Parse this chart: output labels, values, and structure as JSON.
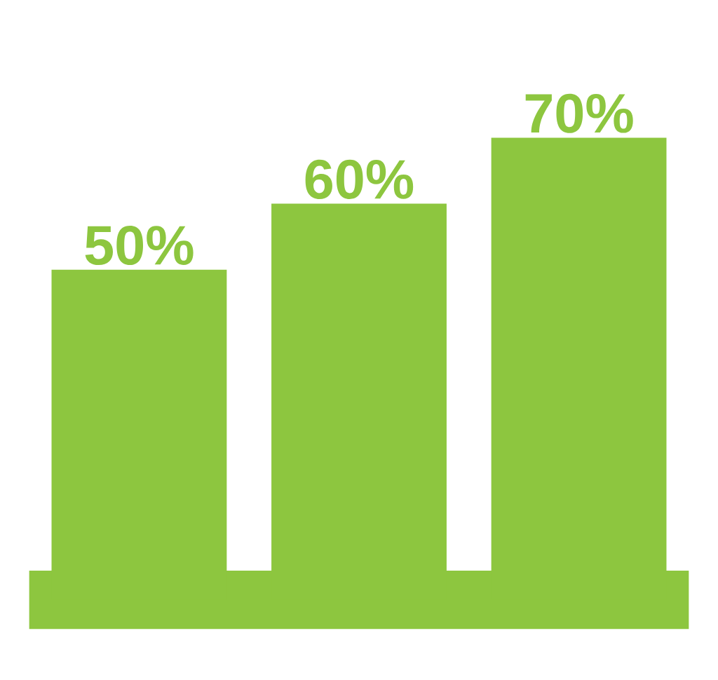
{
  "chart_data": {
    "type": "bar",
    "categories": [
      null,
      null,
      null
    ],
    "values": [
      50,
      60,
      70
    ],
    "color": "#8dc63f",
    "value_labels": [
      "50%",
      "60%",
      "70%"
    ]
  }
}
